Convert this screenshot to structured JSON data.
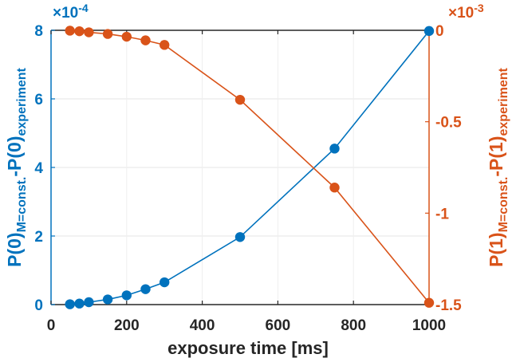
{
  "chart_data": {
    "type": "line",
    "xlabel": "exposure time [ms]",
    "x_ticks": [
      "0",
      "200",
      "400",
      "600",
      "800",
      "1000"
    ],
    "xlim": [
      0,
      1000
    ],
    "grid": true,
    "left_axis": {
      "color": "#0072BD",
      "label_main": "P(0)",
      "label_sub1": "M=const.",
      "label_mid": "-P(0)",
      "label_sub2": "experiment",
      "ylim": [
        0,
        8
      ],
      "ticks": [
        "0",
        "2",
        "4",
        "6",
        "8"
      ],
      "exponent_base": "×10",
      "exponent_power": "-4"
    },
    "right_axis": {
      "color": "#D95319",
      "label_main": "P(1)",
      "label_sub1": "M=const.",
      "label_mid": "-P(1)",
      "label_sub2": "experiment",
      "ylim": [
        -1.5,
        0
      ],
      "ticks": [
        "0",
        "-0.5",
        "-1",
        "-1.5"
      ],
      "exponent_base": "×10",
      "exponent_power": "-3"
    },
    "series": [
      {
        "axis": "left",
        "color": "#0072BD",
        "x": [
          50,
          75,
          100,
          150,
          200,
          250,
          300,
          500,
          750,
          1000
        ],
        "y": [
          0.01,
          0.03,
          0.07,
          0.15,
          0.27,
          0.45,
          0.65,
          1.97,
          4.55,
          7.98
        ]
      },
      {
        "axis": "right",
        "color": "#D95319",
        "x": [
          50,
          75,
          100,
          150,
          200,
          250,
          300,
          500,
          750,
          1000
        ],
        "y": [
          -0.002,
          -0.005,
          -0.011,
          -0.02,
          -0.035,
          -0.055,
          -0.08,
          -0.38,
          -0.86,
          -1.49
        ]
      }
    ]
  }
}
